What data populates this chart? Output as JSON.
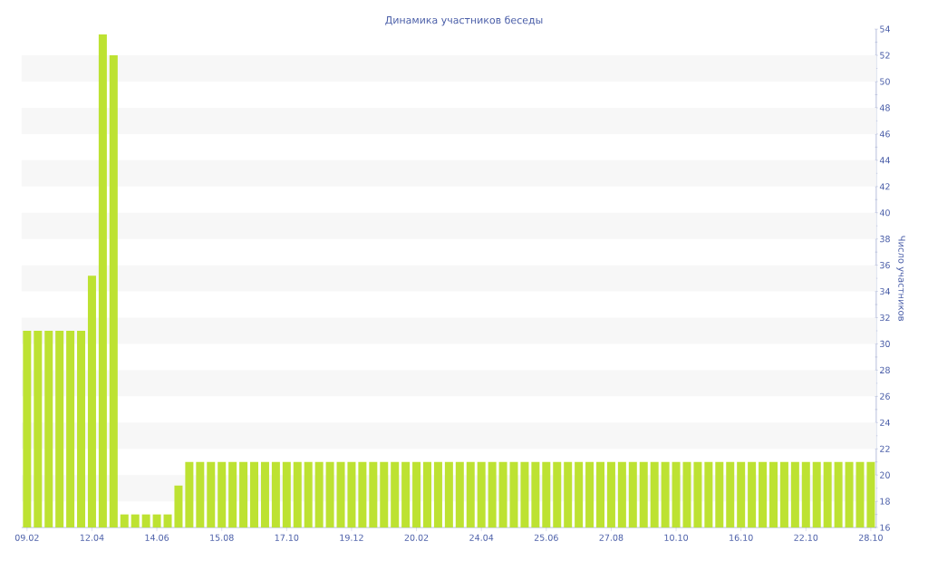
{
  "chart_data": {
    "type": "bar",
    "title": "Динамика участников беседы",
    "ylabel": "Число участников",
    "categories": [
      "09.02",
      null,
      null,
      null,
      null,
      null,
      "12.04",
      null,
      null,
      null,
      null,
      null,
      "14.06",
      null,
      null,
      null,
      null,
      null,
      "15.08",
      null,
      null,
      null,
      null,
      null,
      "17.10",
      null,
      null,
      null,
      null,
      null,
      "19.12",
      null,
      null,
      null,
      null,
      null,
      "20.02",
      null,
      null,
      null,
      null,
      null,
      "24.04",
      null,
      null,
      null,
      null,
      null,
      "25.06",
      null,
      null,
      null,
      null,
      null,
      "27.08",
      null,
      null,
      null,
      null,
      null,
      "10.10",
      null,
      null,
      null,
      null,
      null,
      "16.10",
      null,
      null,
      null,
      null,
      null,
      "22.10",
      null,
      null,
      null,
      null,
      null,
      "28.10"
    ],
    "values": [
      31,
      31,
      31,
      31,
      31,
      31,
      35.2,
      53.6,
      52,
      17,
      17,
      17,
      17,
      17,
      19.2,
      21,
      21,
      21,
      21,
      21,
      21,
      21,
      21,
      21,
      21,
      21,
      21,
      21,
      21,
      21,
      21,
      21,
      21,
      21,
      21,
      21,
      21,
      21,
      21,
      21,
      21,
      21,
      21,
      21,
      21,
      21,
      21,
      21,
      21,
      21,
      21,
      21,
      21,
      21,
      21,
      21,
      21,
      21,
      21,
      21,
      21,
      21,
      21,
      21,
      21,
      21,
      21,
      21,
      21,
      21,
      21,
      21,
      21,
      21,
      21,
      21,
      21,
      21,
      21
    ],
    "color": "#bde232",
    "ylim": [
      16,
      54
    ],
    "yticks": [
      16,
      18,
      20,
      22,
      24,
      26,
      28,
      30,
      32,
      34,
      36,
      38,
      40,
      42,
      44,
      46,
      48,
      50,
      52,
      54
    ],
    "bands": [
      {
        "axis": "y",
        "from": 18,
        "to": 20,
        "color": "#f7f7f7"
      },
      {
        "axis": "y",
        "from": 22,
        "to": 24,
        "color": "#f7f7f7"
      },
      {
        "axis": "y",
        "from": 26,
        "to": 28,
        "color": "#f7f7f7"
      },
      {
        "axis": "y",
        "from": 30,
        "to": 32,
        "color": "#f7f7f7"
      },
      {
        "axis": "y",
        "from": 34,
        "to": 36,
        "color": "#f7f7f7"
      },
      {
        "axis": "y",
        "from": 38,
        "to": 40,
        "color": "#f7f7f7"
      },
      {
        "axis": "y",
        "from": 42,
        "to": 44,
        "color": "#f7f7f7"
      },
      {
        "axis": "y",
        "from": 46,
        "to": 48,
        "color": "#f7f7f7"
      },
      {
        "axis": "y",
        "from": 50,
        "to": 52,
        "color": "#f7f7f7"
      }
    ]
  }
}
